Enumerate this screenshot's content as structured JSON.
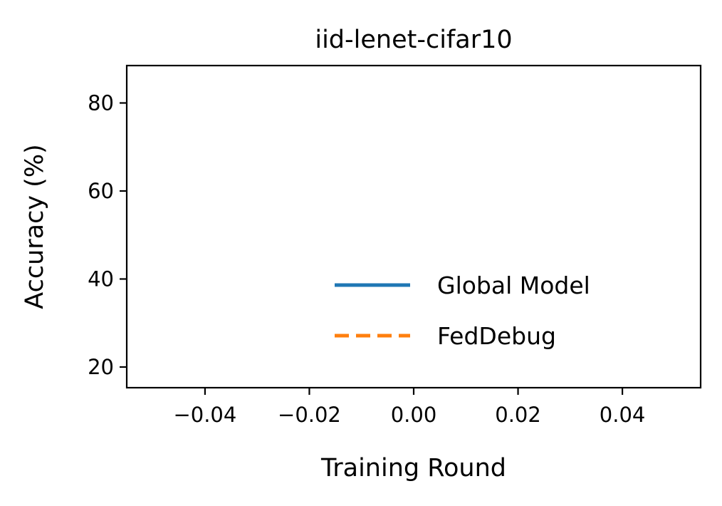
{
  "chart_data": {
    "type": "line",
    "title": "iid-lenet-cifar10",
    "xlabel": "Training Round",
    "ylabel": "Accuracy (%)",
    "xlim": [
      -0.055,
      0.055
    ],
    "ylim": [
      15.3,
      88.5
    ],
    "x_ticks": [
      -0.04,
      -0.02,
      0.0,
      0.02,
      0.04
    ],
    "x_tick_labels": [
      "−0.04",
      "−0.02",
      "0.00",
      "0.02",
      "0.04"
    ],
    "y_ticks": [
      20,
      40,
      60,
      80
    ],
    "y_tick_labels": [
      "20",
      "40",
      "60",
      "80"
    ],
    "grid": false,
    "legend_position": "lower-right",
    "series": [
      {
        "name": "Global Model",
        "color": "#1f77b4",
        "style": "solid",
        "x": [],
        "y": []
      },
      {
        "name": "FedDebug",
        "color": "#ff7f0e",
        "style": "dashed",
        "x": [],
        "y": []
      }
    ]
  }
}
